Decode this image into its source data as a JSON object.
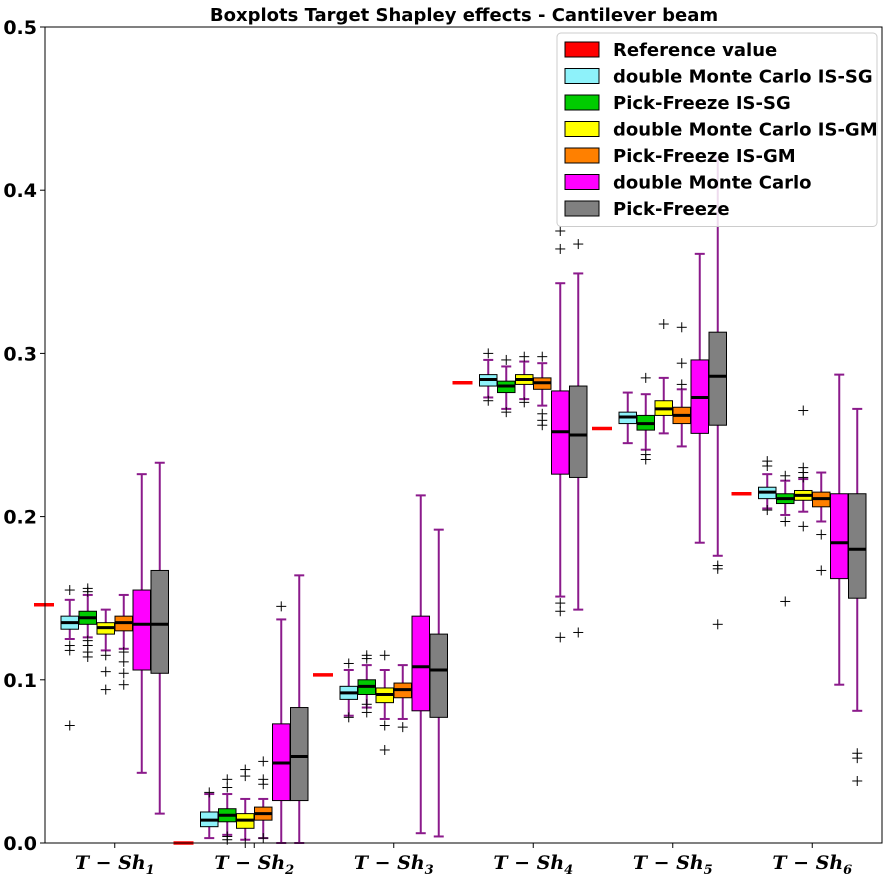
{
  "chart_data": {
    "type": "box",
    "title": "Boxplots Target Shapley effects - Cantilever beam",
    "ylim": [
      0,
      0.5
    ],
    "yticks": [
      0.0,
      0.1,
      0.2,
      0.3,
      0.4,
      0.5
    ],
    "ytick_labels": [
      "0.0",
      "0.1",
      "0.2",
      "0.3",
      "0.4",
      "0.5"
    ],
    "categories": [
      {
        "base": "T − Sh",
        "sub": "1"
      },
      {
        "base": "T − Sh",
        "sub": "2"
      },
      {
        "base": "T − Sh",
        "sub": "3"
      },
      {
        "base": "T − Sh",
        "sub": "4"
      },
      {
        "base": "T − Sh",
        "sub": "5"
      },
      {
        "base": "T − Sh",
        "sub": "6"
      }
    ],
    "reference": {
      "name": "Reference value",
      "color": "#ff0000",
      "values": [
        0.146,
        0.0,
        0.103,
        0.282,
        0.254,
        0.214
      ]
    },
    "series": [
      {
        "name": "double Monte Carlo IS-SG",
        "color": "#8ef2fa",
        "boxes": [
          {
            "q1": 0.131,
            "med": 0.135,
            "q3": 0.139,
            "lo": 0.125,
            "hi": 0.149,
            "fliers": [
              0.155,
              0.121,
              0.118,
              0.072
            ]
          },
          {
            "q1": 0.01,
            "med": 0.014,
            "q3": 0.019,
            "lo": 0.003,
            "hi": 0.03,
            "fliers": [
              0.031
            ]
          },
          {
            "q1": 0.088,
            "med": 0.092,
            "q3": 0.096,
            "lo": 0.078,
            "hi": 0.106,
            "fliers": [
              0.11,
              0.077
            ]
          },
          {
            "q1": 0.28,
            "med": 0.284,
            "q3": 0.287,
            "lo": 0.273,
            "hi": 0.296,
            "fliers": [
              0.3,
              0.271
            ]
          },
          {
            "q1": 0.257,
            "med": 0.261,
            "q3": 0.264,
            "lo": 0.245,
            "hi": 0.276,
            "fliers": []
          },
          {
            "q1": 0.211,
            "med": 0.215,
            "q3": 0.218,
            "lo": 0.205,
            "hi": 0.226,
            "fliers": [
              0.234,
              0.231,
              0.204
            ]
          }
        ]
      },
      {
        "name": "Pick-Freeze IS-SG",
        "color": "#00cc00",
        "boxes": [
          {
            "q1": 0.134,
            "med": 0.138,
            "q3": 0.142,
            "lo": 0.126,
            "hi": 0.152,
            "fliers": [
              0.156,
              0.154,
              0.124,
              0.121,
              0.117,
              0.114
            ]
          },
          {
            "q1": 0.013,
            "med": 0.017,
            "q3": 0.021,
            "lo": 0.005,
            "hi": 0.03,
            "fliers": [
              0.039,
              0.034,
              0.004,
              0.002
            ]
          },
          {
            "q1": 0.091,
            "med": 0.096,
            "q3": 0.1,
            "lo": 0.083,
            "hi": 0.109,
            "fliers": [
              0.115,
              0.113,
              0.085,
              0.08
            ]
          },
          {
            "q1": 0.276,
            "med": 0.28,
            "q3": 0.283,
            "lo": 0.266,
            "hi": 0.292,
            "fliers": [
              0.296,
              0.264
            ]
          },
          {
            "q1": 0.253,
            "med": 0.257,
            "q3": 0.262,
            "lo": 0.241,
            "hi": 0.275,
            "fliers": [
              0.285,
              0.238,
              0.235
            ]
          },
          {
            "q1": 0.208,
            "med": 0.211,
            "q3": 0.214,
            "lo": 0.201,
            "hi": 0.222,
            "fliers": [
              0.225,
              0.197,
              0.148
            ]
          }
        ]
      },
      {
        "name": "double Monte Carlo IS-GM",
        "color": "#ffff00",
        "boxes": [
          {
            "q1": 0.128,
            "med": 0.132,
            "q3": 0.135,
            "lo": 0.118,
            "hi": 0.143,
            "fliers": [
              0.115,
              0.105,
              0.094
            ]
          },
          {
            "q1": 0.009,
            "med": 0.014,
            "q3": 0.018,
            "lo": 0.002,
            "hi": 0.027,
            "fliers": [
              0.045,
              0.041,
              0.0
            ]
          },
          {
            "q1": 0.086,
            "med": 0.091,
            "q3": 0.095,
            "lo": 0.076,
            "hi": 0.106,
            "fliers": [
              0.115,
              0.072,
              0.057
            ]
          },
          {
            "q1": 0.281,
            "med": 0.284,
            "q3": 0.287,
            "lo": 0.272,
            "hi": 0.295,
            "fliers": [
              0.298,
              0.27
            ]
          },
          {
            "q1": 0.262,
            "med": 0.266,
            "q3": 0.271,
            "lo": 0.251,
            "hi": 0.285,
            "fliers": [
              0.318
            ]
          },
          {
            "q1": 0.21,
            "med": 0.213,
            "q3": 0.216,
            "lo": 0.203,
            "hi": 0.223,
            "fliers": [
              0.23,
              0.227,
              0.224,
              0.194,
              0.265
            ]
          }
        ]
      },
      {
        "name": "Pick-Freeze IS-GM",
        "color": "#ff8000",
        "boxes": [
          {
            "q1": 0.13,
            "med": 0.135,
            "q3": 0.139,
            "lo": 0.119,
            "hi": 0.152,
            "fliers": [
              0.117,
              0.111,
              0.104,
              0.097
            ]
          },
          {
            "q1": 0.014,
            "med": 0.018,
            "q3": 0.022,
            "lo": 0.003,
            "hi": 0.027,
            "fliers": [
              0.05,
              0.039,
              0.036,
              0.003
            ]
          },
          {
            "q1": 0.089,
            "med": 0.094,
            "q3": 0.098,
            "lo": 0.076,
            "hi": 0.109,
            "fliers": [
              0.071
            ]
          },
          {
            "q1": 0.278,
            "med": 0.282,
            "q3": 0.285,
            "lo": 0.268,
            "hi": 0.294,
            "fliers": [
              0.298,
              0.263,
              0.259,
              0.256
            ]
          },
          {
            "q1": 0.257,
            "med": 0.262,
            "q3": 0.267,
            "lo": 0.243,
            "hi": 0.278,
            "fliers": [
              0.316,
              0.294,
              0.281
            ]
          },
          {
            "q1": 0.206,
            "med": 0.211,
            "q3": 0.215,
            "lo": 0.197,
            "hi": 0.227,
            "fliers": [
              0.189,
              0.167
            ]
          }
        ]
      },
      {
        "name": "double Monte Carlo",
        "color": "#ff00ff",
        "boxes": [
          {
            "q1": 0.106,
            "med": 0.134,
            "q3": 0.155,
            "lo": 0.043,
            "hi": 0.226,
            "fliers": []
          },
          {
            "q1": 0.026,
            "med": 0.049,
            "q3": 0.073,
            "lo": 0.0,
            "hi": 0.137,
            "fliers": [
              0.145
            ]
          },
          {
            "q1": 0.081,
            "med": 0.108,
            "q3": 0.139,
            "lo": 0.006,
            "hi": 0.213,
            "fliers": []
          },
          {
            "q1": 0.226,
            "med": 0.252,
            "q3": 0.277,
            "lo": 0.151,
            "hi": 0.343,
            "fliers": [
              0.375,
              0.364,
              0.147,
              0.142,
              0.126
            ]
          },
          {
            "q1": 0.251,
            "med": 0.273,
            "q3": 0.296,
            "lo": 0.184,
            "hi": 0.361,
            "fliers": []
          },
          {
            "q1": 0.162,
            "med": 0.184,
            "q3": 0.214,
            "lo": 0.097,
            "hi": 0.287,
            "fliers": []
          }
        ]
      },
      {
        "name": "Pick-Freeze",
        "color": "#808080",
        "boxes": [
          {
            "q1": 0.104,
            "med": 0.134,
            "q3": 0.167,
            "lo": 0.018,
            "hi": 0.233,
            "fliers": []
          },
          {
            "q1": 0.026,
            "med": 0.053,
            "q3": 0.083,
            "lo": 0.0,
            "hi": 0.164,
            "fliers": []
          },
          {
            "q1": 0.077,
            "med": 0.106,
            "q3": 0.128,
            "lo": 0.004,
            "hi": 0.192,
            "fliers": []
          },
          {
            "q1": 0.224,
            "med": 0.25,
            "q3": 0.28,
            "lo": 0.143,
            "hi": 0.349,
            "fliers": [
              0.367,
              0.129
            ]
          },
          {
            "q1": 0.256,
            "med": 0.286,
            "q3": 0.313,
            "lo": 0.176,
            "hi": 0.42,
            "fliers": [
              0.17,
              0.168,
              0.134
            ]
          },
          {
            "q1": 0.15,
            "med": 0.18,
            "q3": 0.214,
            "lo": 0.081,
            "hi": 0.266,
            "fliers": [
              0.055,
              0.052,
              0.038
            ]
          }
        ]
      }
    ],
    "legend": {
      "position": "top-right"
    }
  }
}
